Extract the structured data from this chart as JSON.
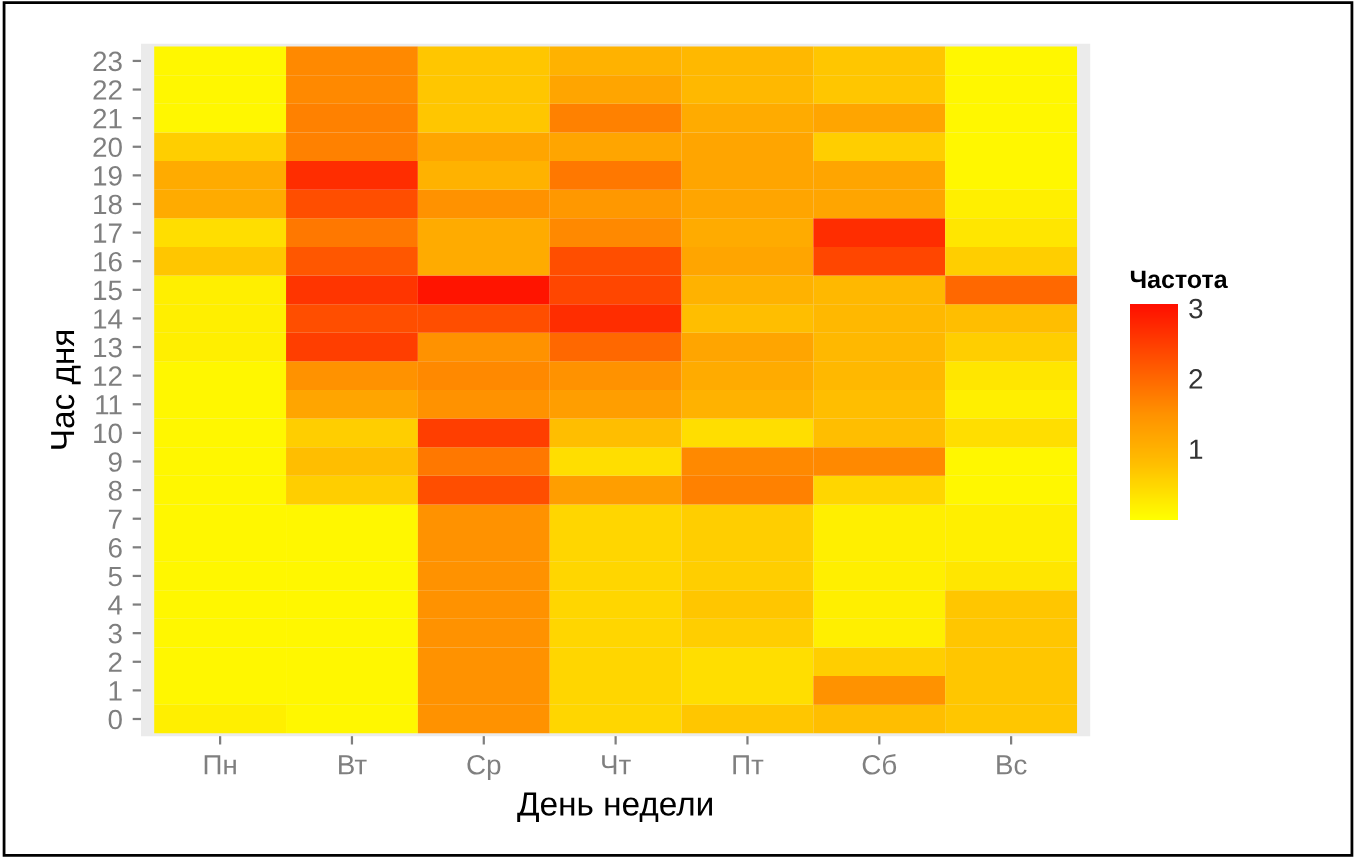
{
  "chart_data": {
    "type": "heatmap",
    "xlabel": "День недели",
    "ylabel": "Час дня",
    "clabel": "Частота",
    "categories": [
      "Пн",
      "Вт",
      "Ср",
      "Чт",
      "Пт",
      "Сб",
      "Вс"
    ],
    "y_categories": [
      "23",
      "22",
      "21",
      "20",
      "19",
      "18",
      "17",
      "16",
      "15",
      "14",
      "13",
      "12",
      "11",
      "10",
      "9",
      "8",
      "7",
      "6",
      "5",
      "4",
      "3",
      "2",
      "1",
      "0"
    ],
    "cells": [
      [
        0.1,
        1.6,
        0.7,
        1.0,
        0.9,
        0.7,
        0.1
      ],
      [
        0.1,
        1.6,
        0.7,
        1.2,
        0.9,
        0.7,
        0.1
      ],
      [
        0.1,
        1.7,
        0.7,
        1.7,
        1.1,
        1.2,
        0.1
      ],
      [
        0.6,
        1.7,
        1.2,
        1.2,
        1.2,
        0.6,
        0.1
      ],
      [
        1.1,
        2.7,
        1.0,
        1.8,
        1.2,
        1.2,
        0.1
      ],
      [
        1.1,
        2.3,
        1.5,
        1.4,
        1.2,
        1.2,
        0.2
      ],
      [
        0.4,
        1.8,
        1.1,
        1.6,
        1.1,
        2.7,
        0.3
      ],
      [
        0.7,
        2.2,
        1.1,
        2.3,
        1.2,
        2.4,
        0.6
      ],
      [
        0.2,
        2.6,
        3.0,
        2.4,
        1.0,
        0.9,
        2.0
      ],
      [
        0.2,
        2.3,
        2.3,
        2.7,
        0.8,
        0.9,
        0.8
      ],
      [
        0.2,
        2.5,
        1.5,
        2.0,
        1.2,
        0.9,
        0.6
      ],
      [
        0.1,
        1.5,
        1.6,
        1.5,
        1.1,
        0.9,
        0.3
      ],
      [
        0.1,
        1.2,
        1.5,
        1.3,
        1.0,
        0.8,
        0.2
      ],
      [
        0.1,
        0.6,
        2.5,
        0.8,
        0.4,
        0.8,
        0.4
      ],
      [
        0.1,
        0.8,
        1.8,
        0.4,
        1.6,
        1.6,
        0.1
      ],
      [
        0.1,
        0.6,
        2.3,
        1.3,
        1.7,
        0.5,
        0.1
      ],
      [
        0.1,
        0.1,
        1.5,
        0.5,
        0.6,
        0.2,
        0.2
      ],
      [
        0.1,
        0.1,
        1.5,
        0.5,
        0.6,
        0.2,
        0.2
      ],
      [
        0.1,
        0.1,
        1.5,
        0.5,
        0.6,
        0.2,
        0.3
      ],
      [
        0.1,
        0.1,
        1.5,
        0.5,
        0.7,
        0.2,
        0.7
      ],
      [
        0.1,
        0.1,
        1.5,
        0.5,
        0.6,
        0.2,
        0.7
      ],
      [
        0.1,
        0.1,
        1.5,
        0.5,
        0.4,
        0.6,
        0.7
      ],
      [
        0.1,
        0.1,
        1.5,
        0.5,
        0.4,
        1.5,
        0.7
      ],
      [
        0.2,
        0.1,
        1.5,
        0.5,
        0.7,
        0.8,
        0.7
      ]
    ],
    "clim": [
      0,
      3.05
    ],
    "cticks": [
      1,
      2,
      3
    ]
  }
}
